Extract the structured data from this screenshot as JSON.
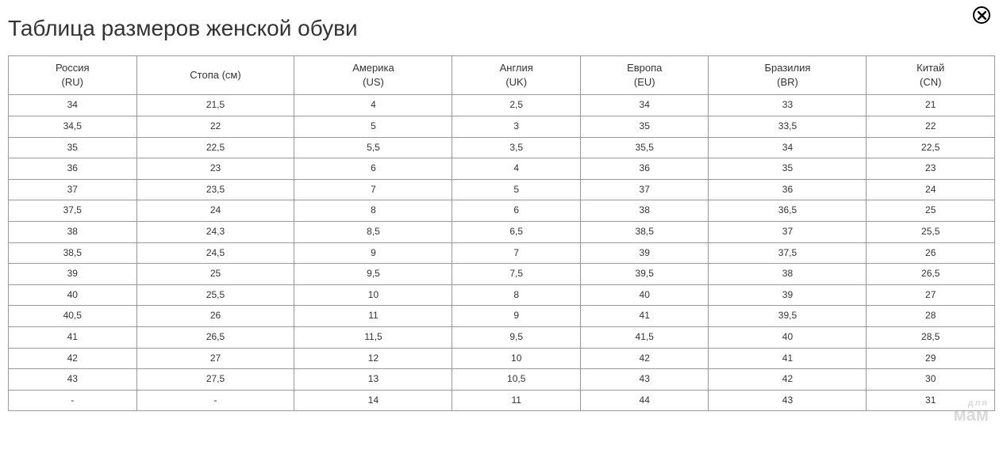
{
  "title": "Таблица размеров женской обуви",
  "watermark": {
    "line1": "для",
    "line2": "мам"
  },
  "table": {
    "columns": [
      {
        "label_line1": "Россия",
        "label_line2": "(RU)",
        "width_class": "col-reg"
      },
      {
        "label_line1": "Стопа (см)",
        "label_line2": "",
        "width_class": "col-wide"
      },
      {
        "label_line1": "Америка",
        "label_line2": "(US)",
        "width_class": "col-wide"
      },
      {
        "label_line1": "Англия",
        "label_line2": "(UK)",
        "width_class": "col-reg"
      },
      {
        "label_line1": "Европа",
        "label_line2": "(EU)",
        "width_class": "col-reg"
      },
      {
        "label_line1": "Бразилия",
        "label_line2": "(BR)",
        "width_class": "col-wide"
      },
      {
        "label_line1": "Китай",
        "label_line2": "(CN)",
        "width_class": "col-reg"
      }
    ],
    "rows": [
      [
        "34",
        "21,5",
        "4",
        "2,5",
        "34",
        "33",
        "21"
      ],
      [
        "34,5",
        "22",
        "5",
        "3",
        "35",
        "33,5",
        "22"
      ],
      [
        "35",
        "22,5",
        "5,5",
        "3,5",
        "35,5",
        "34",
        "22,5"
      ],
      [
        "36",
        "23",
        "6",
        "4",
        "36",
        "35",
        "23"
      ],
      [
        "37",
        "23,5",
        "7",
        "5",
        "37",
        "36",
        "24"
      ],
      [
        "37,5",
        "24",
        "8",
        "6",
        "38",
        "36,5",
        "25"
      ],
      [
        "38",
        "24,3",
        "8,5",
        "6,5",
        "38,5",
        "37",
        "25,5"
      ],
      [
        "38,5",
        "24,5",
        "9",
        "7",
        "39",
        "37,5",
        "26"
      ],
      [
        "39",
        "25",
        "9,5",
        "7,5",
        "39,5",
        "38",
        "26,5"
      ],
      [
        "40",
        "25,5",
        "10",
        "8",
        "40",
        "39",
        "27"
      ],
      [
        "40,5",
        "26",
        "11",
        "9",
        "41",
        "39,5",
        "28"
      ],
      [
        "41",
        "26,5",
        "11,5",
        "9,5",
        "41,5",
        "40",
        "28,5"
      ],
      [
        "42",
        "27",
        "12",
        "10",
        "42",
        "41",
        "29"
      ],
      [
        "43",
        "27,5",
        "13",
        "10,5",
        "43",
        "42",
        "30"
      ],
      [
        "-",
        "-",
        "14",
        "11",
        "44",
        "43",
        "31"
      ]
    ],
    "border_color": "#999999",
    "text_color": "#333333",
    "header_fontsize": 13,
    "cell_fontsize": 12,
    "background_color": "#ffffff"
  }
}
